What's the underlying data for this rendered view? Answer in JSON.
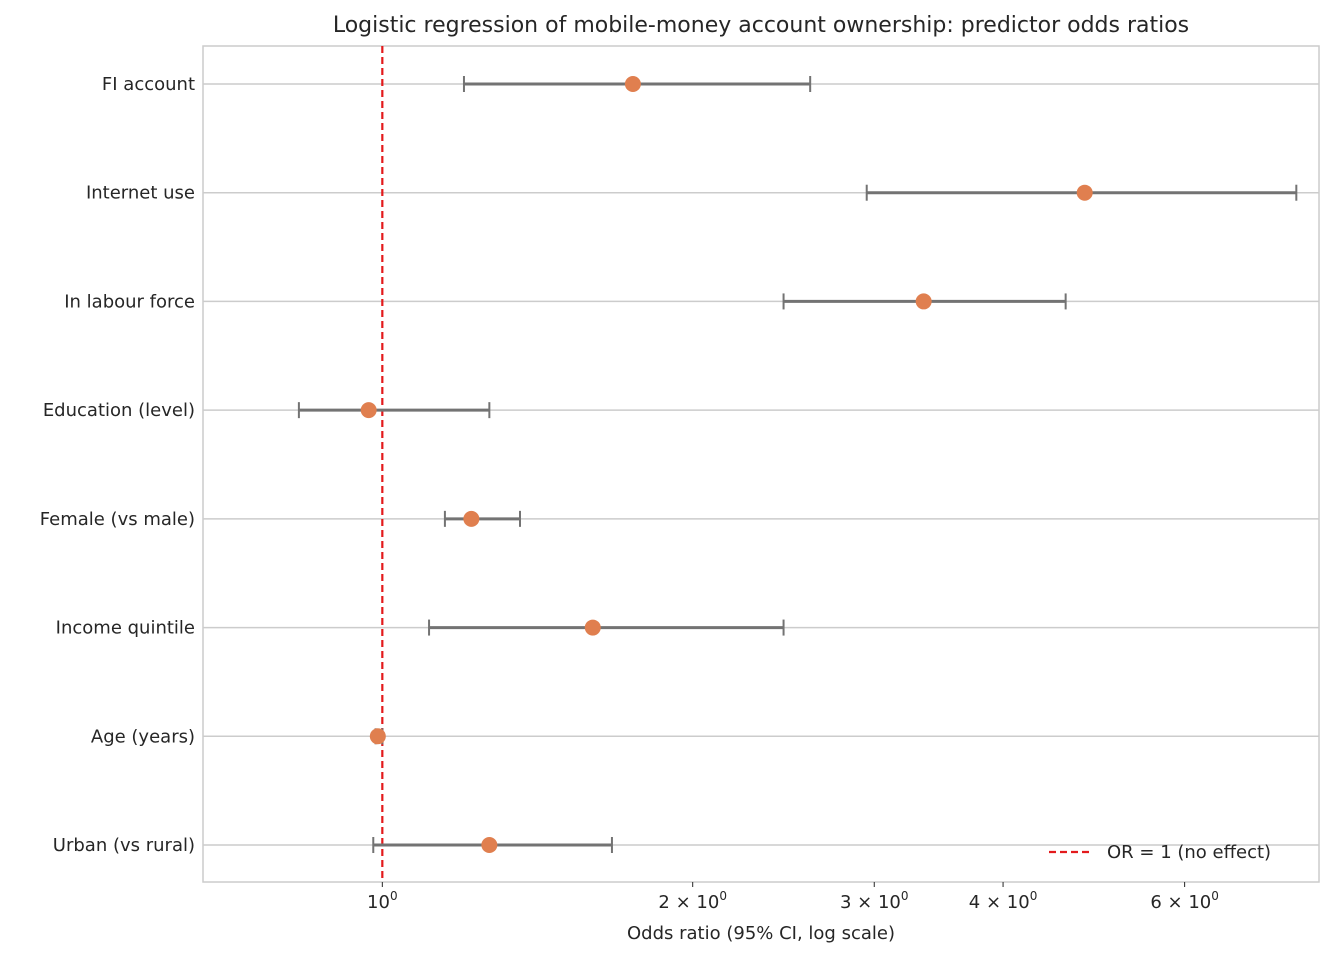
{
  "chart_data": {
    "type": "forest",
    "title": "Logistic regression of mobile-money account ownership: predictor odds ratios",
    "xlabel": "Odds ratio (95% CI, log scale)",
    "ylabel": "",
    "xscale": "log",
    "xlim": [
      0.67,
      8.1
    ],
    "x_ticks": [
      {
        "value": 1,
        "label": "10",
        "exp": "0"
      },
      {
        "value": 2,
        "label": "2 × 10",
        "exp": "0"
      },
      {
        "value": 3,
        "label": "3 × 10",
        "exp": "0"
      },
      {
        "value": 4,
        "label": "4 × 10",
        "exp": "0"
      },
      {
        "value": 6,
        "label": "6 × 10",
        "exp": "0"
      }
    ],
    "reference_line": {
      "value": 1,
      "label": "OR = 1 (no effect)",
      "color": "#e31a1c"
    },
    "legend_position": "lower-right",
    "grid": true,
    "colors": {
      "point": "#e07f4f",
      "ci": "#737373",
      "grid": "#cccccc",
      "frame": "#cccccc"
    },
    "predictors": [
      {
        "name": "FI account",
        "or": 1.75,
        "ci_low": 1.2,
        "ci_high": 2.6
      },
      {
        "name": "Internet use",
        "or": 4.8,
        "ci_low": 2.95,
        "ci_high": 7.7
      },
      {
        "name": "In labour force",
        "or": 3.35,
        "ci_low": 2.45,
        "ci_high": 4.6
      },
      {
        "name": "Education (level)",
        "or": 0.97,
        "ci_low": 0.83,
        "ci_high": 1.27
      },
      {
        "name": "Female (vs male)",
        "or": 1.22,
        "ci_low": 1.15,
        "ci_high": 1.36
      },
      {
        "name": "Income quintile",
        "or": 1.6,
        "ci_low": 1.11,
        "ci_high": 2.45
      },
      {
        "name": "Age (years)",
        "or": 0.99,
        "ci_low": 0.985,
        "ci_high": 1.0
      },
      {
        "name": "Urban (vs rural)",
        "or": 1.27,
        "ci_low": 0.98,
        "ci_high": 1.67
      }
    ]
  }
}
